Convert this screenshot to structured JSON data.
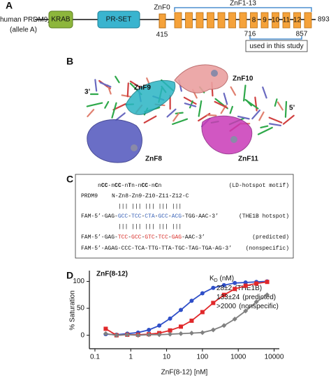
{
  "panel_a": {
    "letter": "A",
    "protein": "human PRDM9",
    "protein_sub": "A",
    "allele": "(allele A)",
    "domains": [
      "KRAB",
      "PR-SET"
    ],
    "znf0": "ZnF0",
    "znf_array": "ZnF1-13",
    "positions": [
      "415",
      "716",
      "857",
      "893"
    ],
    "finger_labels": [
      "8",
      "9",
      "10",
      "11",
      "12"
    ],
    "note": "used in this study"
  },
  "panel_b": {
    "letter": "B",
    "labels": [
      "ZnF9",
      "ZnF10",
      "ZnF8",
      "ZnF11",
      "3’",
      "5’"
    ]
  },
  "panel_c": {
    "letter": "C",
    "lines": [
      {
        "segments": [
          {
            "text": "n"
          },
          {
            "text": "CC",
            "bold": true
          },
          {
            "text": "-n"
          },
          {
            "text": "CC",
            "bold": true
          },
          {
            "text": "-n"
          },
          {
            "text": "T",
            "bold": true
          },
          {
            "text": "n-n"
          },
          {
            "text": "CC",
            "bold": true
          },
          {
            "text": "-n"
          },
          {
            "text": "C",
            "bold": true
          },
          {
            "text": "n"
          }
        ],
        "annotation": "(LD-hotspot motif)"
      },
      {
        "label": "PRDM9",
        "segments": [
          {
            "text": "N-Zn8-Zn9-Z10-Z11-Z12-C"
          }
        ]
      },
      {
        "segments": [
          {
            "text": "||| ||| ||| ||| |||"
          }
        ]
      },
      {
        "segments": [
          {
            "text": "FAM-5’-GAG-"
          },
          {
            "text": "GCC",
            "color": "#3a63b8"
          },
          {
            "text": "-"
          },
          {
            "text": "TCC",
            "color": "#3a63b8"
          },
          {
            "text": "-"
          },
          {
            "text": "CTA",
            "color": "#3a63b8"
          },
          {
            "text": "-"
          },
          {
            "text": "GCC",
            "color": "#3a63b8"
          },
          {
            "text": "-"
          },
          {
            "text": "ACG",
            "color": "#3a63b8"
          },
          {
            "text": "-TGG-AAC-3’"
          }
        ],
        "annotation": "(THE1B hotspot)"
      },
      {
        "segments": [
          {
            "text": "||| ||| ||| ||| |||"
          }
        ]
      },
      {
        "segments": [
          {
            "text": "FAM-5’-GAG-"
          },
          {
            "text": "TCC",
            "color": "#d9302b"
          },
          {
            "text": "-"
          },
          {
            "text": "GCC",
            "color": "#d9302b"
          },
          {
            "text": "-"
          },
          {
            "text": "GTC",
            "color": "#d9302b"
          },
          {
            "text": "-"
          },
          {
            "text": "TCC",
            "color": "#d9302b"
          },
          {
            "text": "-"
          },
          {
            "text": "GAG",
            "color": "#d9302b"
          },
          {
            "text": "-AAC-3’"
          }
        ],
        "annotation": "(predicted)"
      },
      {
        "segments": [
          {
            "text": "FAM-5’-AGAG-CCC-TCA-TTG-TTA-TGC-TAG-TGA-AG-3’"
          }
        ],
        "annotation": "(nonspecific)"
      }
    ]
  },
  "chart_data": {
    "type": "line",
    "letter": "D",
    "title": "ZnF(8-12)",
    "x_label": "ZnF(8-12) [nM]",
    "y_label": "% Saturation",
    "legend_header": {
      "main": "K",
      "sub": "D",
      "unit": " (nM)"
    },
    "x": [
      0.2,
      0.4,
      0.8,
      1.6,
      3.2,
      6.25,
      12.5,
      25,
      50,
      100,
      200,
      400,
      800,
      1600,
      3200,
      6400
    ],
    "series": [
      {
        "name": "(THE1B)",
        "kd": "28±2",
        "color": "#2f4fc8",
        "label_color": "#2f4fc8",
        "marker": "circle",
        "values": [
          2,
          1,
          3,
          5,
          10,
          18,
          31,
          47,
          64,
          78,
          88,
          93,
          97,
          98,
          99,
          100
        ]
      },
      {
        "name": "(predicted)",
        "kd": "133±24",
        "color": "#e0282a",
        "label_color": "#e0282a",
        "marker": "square",
        "values": [
          12,
          0,
          1,
          1,
          2,
          4,
          9,
          16,
          27,
          43,
          60,
          75,
          86,
          92,
          96,
          99
        ]
      },
      {
        "name": "(nonspecific)",
        "kd": ">2000",
        "color": "#808080",
        "label_color": "#000000",
        "marker": "diamond",
        "values": [
          3,
          0,
          1,
          0,
          1,
          1,
          2,
          3,
          4,
          5,
          10,
          18,
          30,
          45,
          62,
          75
        ]
      }
    ],
    "log_x": true,
    "xlim": [
      0.07,
      14000
    ],
    "xticks": [
      0.1,
      1,
      10,
      100,
      1000,
      10000
    ],
    "ylim": [
      -25,
      120
    ],
    "yticks": [
      0,
      50,
      100
    ]
  }
}
